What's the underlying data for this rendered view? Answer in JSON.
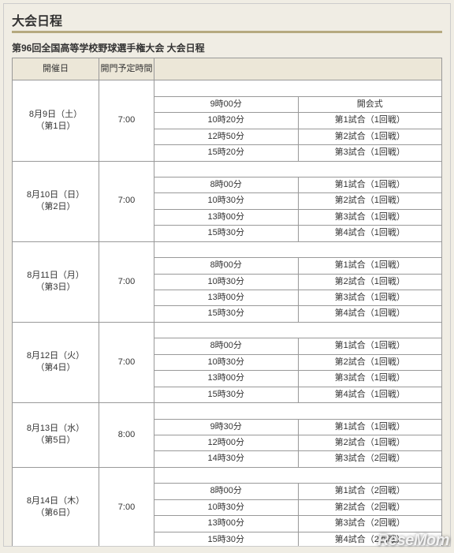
{
  "colors": {
    "page_bg": "#f0ede4",
    "header_bg": "#ece7d8",
    "border": "#999999",
    "title_underline": "#b5a97f",
    "cell_bg": "#ffffff",
    "text": "#333333"
  },
  "section_title": "大会日程",
  "sub_title": "第96回全国高等学校野球選手権大会 大会日程",
  "headers": {
    "date": "開催日",
    "gate": "開門予定時間"
  },
  "watermark": "ReseMom",
  "days": [
    {
      "date_line1": "8月9日（土）",
      "date_line2": "（第1日）",
      "gate": "7:00",
      "rows": [
        {
          "time": "9時00分",
          "event": "開会式"
        },
        {
          "time": "10時20分",
          "event": "第1試合（1回戦）"
        },
        {
          "time": "12時50分",
          "event": "第2試合（1回戦）"
        },
        {
          "time": "15時20分",
          "event": "第3試合（1回戦）"
        }
      ]
    },
    {
      "date_line1": "8月10日（日）",
      "date_line2": "（第2日）",
      "gate": "7:00",
      "rows": [
        {
          "time": "8時00分",
          "event": "第1試合（1回戦）"
        },
        {
          "time": "10時30分",
          "event": "第2試合（1回戦）"
        },
        {
          "time": "13時00分",
          "event": "第3試合（1回戦）"
        },
        {
          "time": "15時30分",
          "event": "第4試合（1回戦）"
        }
      ]
    },
    {
      "date_line1": "8月11日（月）",
      "date_line2": "（第3日）",
      "gate": "7:00",
      "rows": [
        {
          "time": "8時00分",
          "event": "第1試合（1回戦）"
        },
        {
          "time": "10時30分",
          "event": "第2試合（1回戦）"
        },
        {
          "time": "13時00分",
          "event": "第3試合（1回戦）"
        },
        {
          "time": "15時30分",
          "event": "第4試合（1回戦）"
        }
      ]
    },
    {
      "date_line1": "8月12日（火）",
      "date_line2": "（第4日）",
      "gate": "7:00",
      "rows": [
        {
          "time": "8時00分",
          "event": "第1試合（1回戦）"
        },
        {
          "time": "10時30分",
          "event": "第2試合（1回戦）"
        },
        {
          "time": "13時00分",
          "event": "第3試合（1回戦）"
        },
        {
          "time": "15時30分",
          "event": "第4試合（1回戦）"
        }
      ]
    },
    {
      "date_line1": "8月13日（水）",
      "date_line2": "（第5日）",
      "gate": "8:00",
      "rows": [
        {
          "time": "9時30分",
          "event": "第1試合（1回戦）"
        },
        {
          "time": "12時00分",
          "event": "第2試合（1回戦）"
        },
        {
          "time": "14時30分",
          "event": "第3試合（2回戦）"
        }
      ]
    },
    {
      "date_line1": "8月14日（木）",
      "date_line2": "（第6日）",
      "gate": "7:00",
      "rows": [
        {
          "time": "8時00分",
          "event": "第1試合（2回戦）"
        },
        {
          "time": "10時30分",
          "event": "第2試合（2回戦）"
        },
        {
          "time": "13時00分",
          "event": "第3試合（2回戦）"
        },
        {
          "time": "15時30分",
          "event": "第4試合（2回戦）"
        }
      ]
    }
  ]
}
